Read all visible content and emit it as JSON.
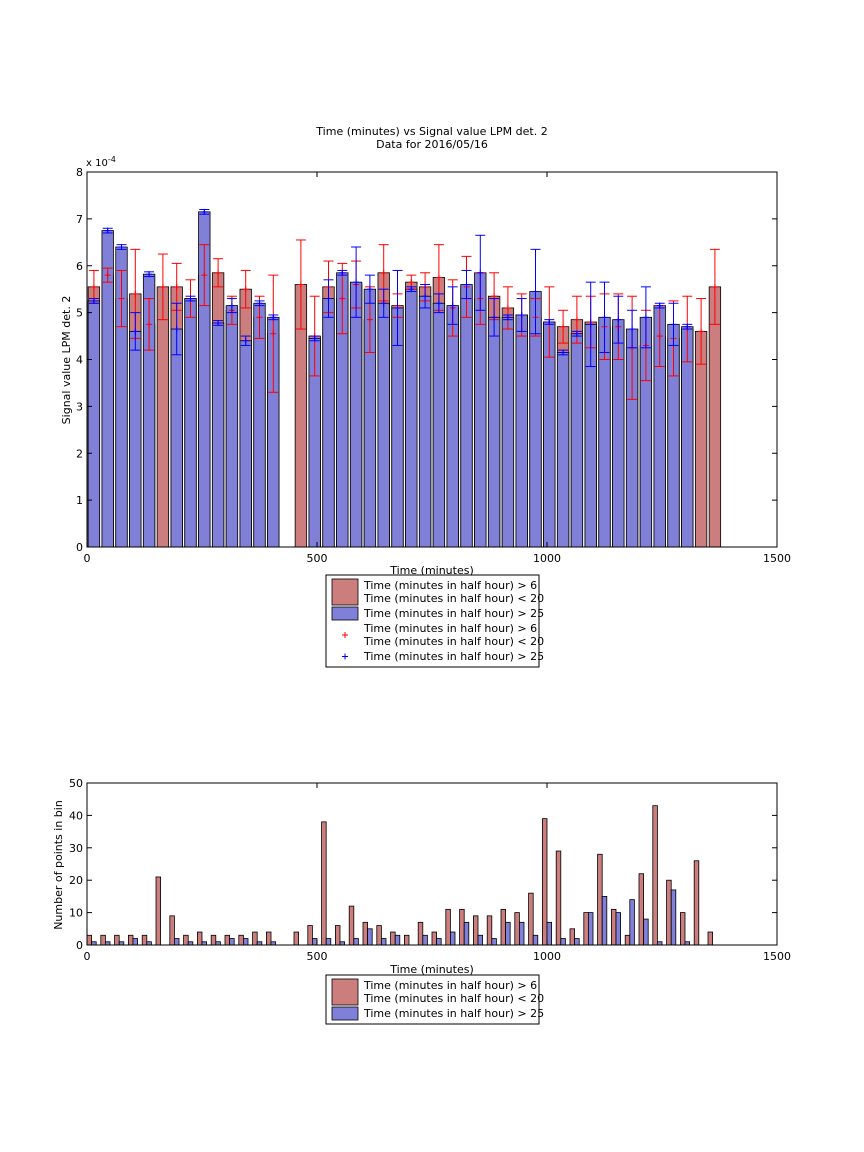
{
  "colors": {
    "red_bar": "#cc7e7e",
    "blue_bar": "#8080d8",
    "red_err": "#ff0000",
    "blue_err": "#0000ff"
  },
  "top_legend": {
    "entries": [
      {
        "lines": [
          "Time (minutes in half hour) > 6",
          "Time (minutes in half hour) < 20"
        ],
        "kind": "patch",
        "color": "#cc7e7e"
      },
      {
        "lines": [
          "Time (minutes in half hour) > 25"
        ],
        "kind": "patch",
        "color": "#8080d8"
      },
      {
        "lines": [
          "Time (minutes in half hour) > 6",
          "Time (minutes in half hour) < 20"
        ],
        "kind": "marker",
        "color": "#ff0000"
      },
      {
        "lines": [
          "Time (minutes in half hour) > 25"
        ],
        "kind": "marker",
        "color": "#0000ff"
      }
    ]
  },
  "bottom_legend": {
    "entries": [
      {
        "lines": [
          "Time (minutes in half hour) > 6",
          "Time (minutes in half hour) < 20"
        ],
        "kind": "patch",
        "color": "#cc7e7e"
      },
      {
        "lines": [
          "Time (minutes in half hour) > 25"
        ],
        "kind": "patch",
        "color": "#8080d8"
      }
    ]
  },
  "chart_data": [
    {
      "type": "bar",
      "title": "Time (minutes) vs Signal value LPM det. 2",
      "subtitle": "Data for 2016/05/16",
      "xlabel": "Time (minutes)",
      "ylabel": "Signal value LPM det. 2",
      "y_exponent_label": "x 10",
      "y_exponent": "-4",
      "xlim": [
        0,
        1500
      ],
      "ylim": [
        0,
        8
      ],
      "xticks": [
        0,
        500,
        1000,
        1500
      ],
      "yticks": [
        0,
        1,
        2,
        3,
        4,
        5,
        6,
        7,
        8
      ],
      "grid": false,
      "bar_width": 25,
      "series": [
        {
          "name": "Time (minutes in half hour) > 6 / Time (minutes in half hour) < 20",
          "color": "#cc7e7e",
          "x": [
            15,
            45,
            75,
            105,
            135,
            165,
            195,
            225,
            255,
            285,
            315,
            345,
            375,
            405,
            465,
            495,
            525,
            555,
            585,
            615,
            645,
            675,
            705,
            735,
            765,
            795,
            825,
            855,
            885,
            915,
            945,
            975,
            1005,
            1035,
            1065,
            1095,
            1125,
            1155,
            1185,
            1215,
            1245,
            1275,
            1305,
            1335,
            1365
          ],
          "values": [
            5.55,
            5.8,
            5.3,
            5.4,
            4.75,
            5.55,
            5.55,
            5.3,
            5.8,
            5.85,
            5.05,
            5.5,
            4.9,
            4.55,
            5.6,
            4.5,
            5.55,
            5.3,
            5.6,
            4.85,
            5.85,
            5.15,
            5.65,
            5.55,
            5.75,
            5.1,
            5.55,
            5.3,
            5.35,
            5.1,
            4.95,
            4.9,
            4.8,
            4.7,
            4.85,
            4.8,
            4.7,
            4.7,
            4.25,
            4.3,
            4.5,
            4.45,
            4.65,
            4.6,
            5.55
          ],
          "errors": [
            0.35,
            0.15,
            0.6,
            0.95,
            0.55,
            0.7,
            0.5,
            0.4,
            0.65,
            0.3,
            0.3,
            0.4,
            0.45,
            1.25,
            0.95,
            0.85,
            0.55,
            0.75,
            0.5,
            0.7,
            0.6,
            0.25,
            0.15,
            0.3,
            0.7,
            0.6,
            0.65,
            0.55,
            0.5,
            0.45,
            0.45,
            0.4,
            0.75,
            0.35,
            0.5,
            0.55,
            0.7,
            0.7,
            1.1,
            0.75,
            0.65,
            0.8,
            0.7,
            0.7,
            0.8
          ]
        },
        {
          "name": "Time (minutes in half hour) > 25",
          "color": "#8080d8",
          "x": [
            15,
            45,
            75,
            105,
            135,
            195,
            225,
            255,
            285,
            315,
            345,
            375,
            405,
            495,
            525,
            555,
            585,
            615,
            645,
            675,
            705,
            735,
            765,
            795,
            825,
            855,
            885,
            915,
            945,
            975,
            1005,
            1035,
            1065,
            1095,
            1125,
            1155,
            1185,
            1215,
            1245,
            1275,
            1305
          ],
          "values": [
            5.25,
            6.75,
            6.4,
            4.6,
            5.82,
            4.65,
            5.3,
            7.15,
            4.78,
            5.15,
            4.4,
            5.2,
            4.9,
            4.45,
            5.3,
            5.85,
            5.65,
            5.5,
            5.2,
            5.1,
            5.5,
            5.35,
            5.2,
            5.15,
            5.6,
            5.85,
            4.9,
            4.9,
            4.95,
            5.45,
            4.8,
            4.15,
            4.55,
            4.75,
            4.9,
            4.85,
            4.65,
            4.9,
            5.15,
            4.75,
            4.7
          ],
          "errors": [
            0.05,
            0.05,
            0.05,
            0.4,
            0.05,
            0.55,
            0.05,
            0.05,
            0.05,
            0.15,
            0.1,
            0.05,
            0.05,
            0.05,
            0.4,
            0.05,
            0.75,
            0.3,
            0.3,
            0.8,
            0.05,
            0.25,
            0.2,
            0.4,
            0.3,
            0.8,
            0.4,
            0.05,
            0.35,
            0.9,
            0.05,
            0.05,
            0.05,
            0.9,
            0.75,
            0.5,
            0.4,
            0.65,
            0.05,
            0.45,
            0.05
          ]
        }
      ]
    },
    {
      "type": "bar",
      "xlabel": "Time (minutes)",
      "ylabel": "Number of points in bin",
      "xlim": [
        0,
        1500
      ],
      "ylim": [
        0,
        50
      ],
      "xticks": [
        0,
        500,
        1000,
        1500
      ],
      "yticks": [
        0,
        10,
        20,
        30,
        40,
        50
      ],
      "grid": false,
      "bar_width": 10,
      "series": [
        {
          "name": "Time (minutes in half hour) > 6 / Time (minutes in half hour) < 20",
          "color": "#cc7e7e",
          "x": [
            5,
            35,
            65,
            95,
            125,
            155,
            185,
            215,
            245,
            275,
            305,
            335,
            365,
            395,
            455,
            485,
            515,
            545,
            575,
            605,
            635,
            665,
            695,
            725,
            755,
            785,
            815,
            845,
            875,
            905,
            935,
            965,
            995,
            1025,
            1055,
            1085,
            1115,
            1145,
            1175,
            1205,
            1235,
            1265,
            1295,
            1325,
            1355
          ],
          "values": [
            3,
            3,
            3,
            3,
            3,
            21,
            9,
            3,
            4,
            3,
            3,
            3,
            4,
            4,
            4,
            6,
            38,
            6,
            12,
            7,
            6,
            4,
            3,
            7,
            4,
            11,
            11,
            9,
            9,
            11,
            10,
            16,
            39,
            29,
            5,
            10,
            28,
            11,
            3,
            22,
            43,
            20,
            10,
            26,
            4
          ]
        },
        {
          "name": "Time (minutes in half hour) > 25",
          "color": "#8080d8",
          "x": [
            15,
            45,
            75,
            105,
            135,
            195,
            225,
            255,
            285,
            315,
            345,
            375,
            405,
            495,
            525,
            555,
            585,
            615,
            645,
            675,
            705,
            735,
            765,
            795,
            825,
            855,
            885,
            915,
            945,
            975,
            1005,
            1035,
            1065,
            1095,
            1125,
            1155,
            1185,
            1215,
            1245,
            1275,
            1305
          ],
          "values": [
            1,
            1,
            1,
            2,
            1,
            2,
            1,
            1,
            1,
            2,
            2,
            1,
            1,
            2,
            2,
            1,
            2,
            5,
            2,
            3,
            0,
            3,
            2,
            4,
            7,
            3,
            2,
            7,
            7,
            3,
            7,
            2,
            2,
            10,
            15,
            10,
            14,
            8,
            1,
            17,
            1
          ]
        }
      ]
    }
  ]
}
